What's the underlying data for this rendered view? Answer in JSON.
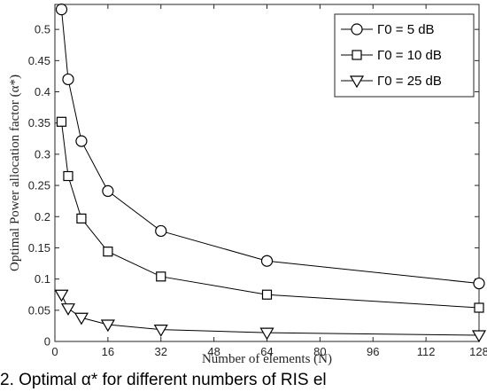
{
  "chart_data": {
    "type": "line",
    "xlabel": "Number of elements (N)",
    "ylabel": "Optimal Power allocation factor (α*)",
    "xlim": [
      0,
      128
    ],
    "ylim": [
      0,
      0.54
    ],
    "x_ticks": [
      "0",
      "16",
      "32",
      "48",
      "64",
      "80",
      "96",
      "112",
      "128"
    ],
    "y_ticks": [
      "0",
      "0.05",
      "0.1",
      "0.15",
      "0.2",
      "0.25",
      "0.3",
      "0.35",
      "0.4",
      "0.45",
      "0.5"
    ],
    "grid": false,
    "legend_position": "top-right",
    "series": [
      {
        "name": "Γ0 = 5 dB",
        "marker": "circle",
        "x": [
          2,
          4,
          8,
          16,
          32,
          64,
          128
        ],
        "values": [
          0.532,
          0.42,
          0.321,
          0.241,
          0.177,
          0.129,
          0.093
        ]
      },
      {
        "name": "Γ0 = 10 dB",
        "marker": "square",
        "x": [
          2,
          4,
          8,
          16,
          32,
          64,
          128
        ],
        "values": [
          0.352,
          0.265,
          0.197,
          0.144,
          0.104,
          0.075,
          0.054
        ]
      },
      {
        "name": "Γ0 = 25 dB",
        "marker": "triangle-down",
        "x": [
          2,
          4,
          8,
          16,
          32,
          64,
          128
        ],
        "values": [
          0.075,
          0.053,
          0.038,
          0.027,
          0.019,
          0.014,
          0.01
        ]
      }
    ]
  },
  "caption": "2. Optimal α* for different numbers of RIS el"
}
